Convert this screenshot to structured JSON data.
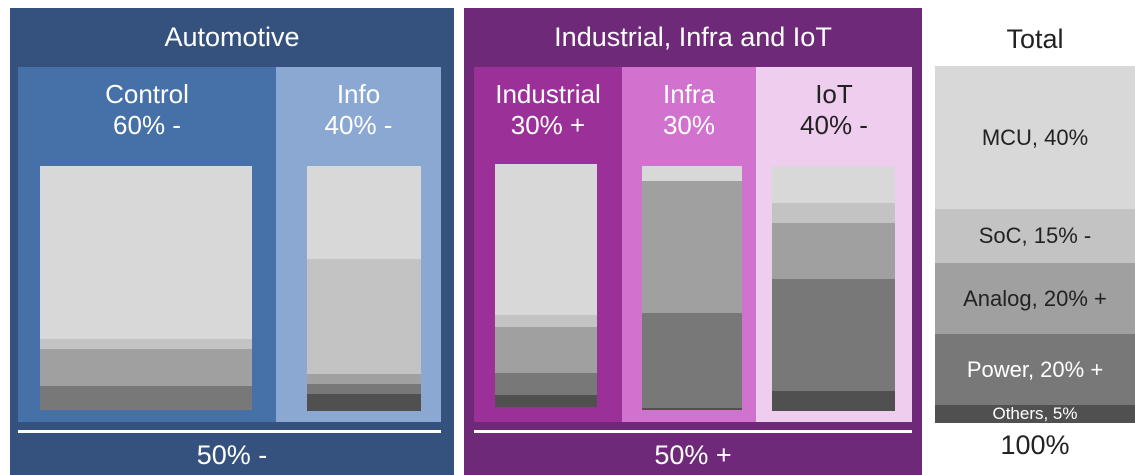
{
  "colors": {
    "automotive_bg": "#34527d",
    "control_bg": "#4570a8",
    "info_bg": "#8aa8d1",
    "industrial_group_bg": "#6e2a78",
    "industrial_bg": "#9b3198",
    "infra_bg": "#d172cf",
    "iot_bg": "#eecdee",
    "mcu": "#d8d8d8",
    "soc": "#c3c3c3",
    "analog": "#a0a0a0",
    "power": "#787878",
    "others": "#505050"
  },
  "groups": {
    "automotive": {
      "title": "Automotive",
      "bottom": "50% -"
    },
    "industrial": {
      "title": "Industrial, Infra and IoT",
      "bottom": "50% +"
    }
  },
  "segments": {
    "control": {
      "name": "Control",
      "share": "60% -",
      "mix": [
        0.71,
        0.04,
        0.15,
        0.1,
        0.0
      ]
    },
    "info": {
      "name": "Info",
      "share": "40% -",
      "mix": [
        0.38,
        0.47,
        0.04,
        0.04,
        0.07
      ]
    },
    "industrial": {
      "name": "Industrial",
      "share": "30% +",
      "mix": [
        0.62,
        0.05,
        0.19,
        0.09,
        0.05
      ]
    },
    "infra": {
      "name": "Infra",
      "share": "30%",
      "mix": [
        0.06,
        0.0,
        0.54,
        0.39,
        0.01
      ]
    },
    "iot": {
      "name": "IoT",
      "share": "40% -",
      "mix": [
        0.15,
        0.08,
        0.23,
        0.46,
        0.08
      ]
    }
  },
  "total": {
    "title": "Total",
    "bottom": "100%",
    "items": [
      {
        "label": "MCU, 40%",
        "value": 40
      },
      {
        "label": "SoC, 15% -",
        "value": 15
      },
      {
        "label": "Analog, 20% +",
        "value": 20
      },
      {
        "label": "Power, 20% +",
        "value": 20
      },
      {
        "label": "Others, 5%",
        "value": 5
      }
    ]
  }
}
